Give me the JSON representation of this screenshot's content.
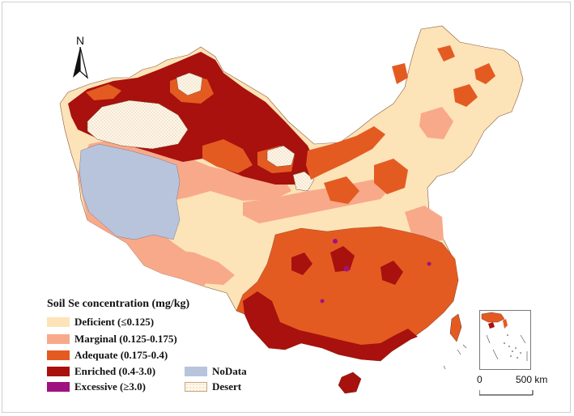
{
  "colors": {
    "deficient": "#fde3b8",
    "marginal": "#f8a98a",
    "adequate": "#e45b22",
    "enriched": "#a8110d",
    "excessive": "#a0127f",
    "nodata": "#b8c4dc",
    "desert": "#fff7ea",
    "desert_dots": "#c9a679"
  },
  "north_arrow": {
    "label": "N",
    "icon": "north-arrow-icon"
  },
  "legend": {
    "title": "Soil Se concentration (mg/kg)",
    "items": [
      {
        "key": "deficient",
        "label": "Deficient (≤0.125)"
      },
      {
        "key": "marginal",
        "label": "Marginal (0.125-0.175)"
      },
      {
        "key": "adequate",
        "label": "Adequate (0.175-0.4)"
      },
      {
        "key": "enriched",
        "label": "Enriched (0.4-3.0)"
      },
      {
        "key": "excessive",
        "label": "Excessive (≥3.0)"
      },
      {
        "key": "nodata",
        "label": "NoData"
      },
      {
        "key": "desert",
        "label": "Desert"
      }
    ]
  },
  "scale_bar": {
    "start_label": "0",
    "end_label": "500 km"
  }
}
